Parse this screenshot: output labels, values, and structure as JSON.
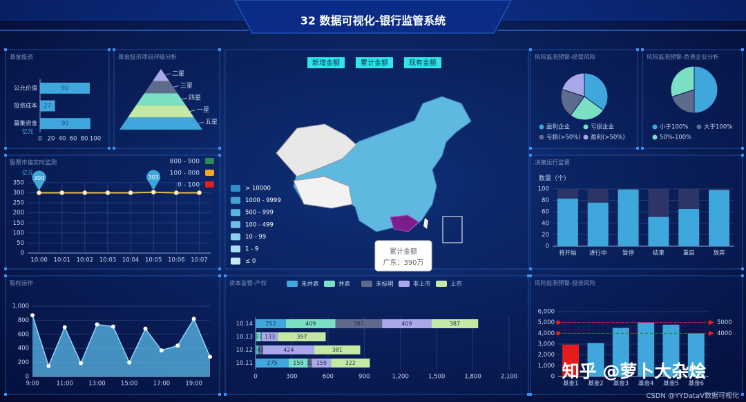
{
  "header": {
    "title": "32 数据可视化-银行监管系统"
  },
  "chart_data": [
    {
      "type": "hbar",
      "title": "基金投资",
      "categories": [
        "公允价值",
        "投资成本",
        "募集资金"
      ],
      "values": [
        90,
        27,
        91
      ],
      "color": "#3fa7dc",
      "unit": "亿元",
      "xlim": [
        0,
        100
      ],
      "xticks": [
        0,
        20,
        40,
        60,
        80,
        100
      ]
    },
    {
      "type": "funnel",
      "title": "基金投资项目评级分析",
      "categories": [
        "二星",
        "三星",
        "四星",
        "一星",
        "五星"
      ],
      "values": [
        20,
        40,
        60,
        80,
        100
      ],
      "colors": [
        "#a9a8e8",
        "#5f6b8c",
        "#7be0c3",
        "#c5e9a5",
        "#3fa7dc"
      ]
    },
    {
      "type": "line",
      "title": "股票市值实时监测",
      "unit": "亿元",
      "categories": [
        "10:00",
        "10:01",
        "10:02",
        "10:03",
        "10:04",
        "10:05",
        "10:06",
        "10:07"
      ],
      "values": [
        300,
        300,
        300,
        300,
        300,
        303,
        300,
        300
      ],
      "color": "#e8b84a",
      "pin_color": "#3fa7dc",
      "ylim": [
        0,
        350
      ],
      "yticks": [
        0,
        50,
        100,
        150,
        200,
        250,
        300,
        350
      ],
      "grid": true,
      "visual_map": [
        {
          "label": "800 - 900",
          "color": "#2e8b57"
        },
        {
          "label": "100 - 800",
          "color": "#f5a623"
        },
        {
          "label": "0 - 100",
          "color": "#e02020"
        }
      ]
    },
    {
      "type": "pie",
      "title": "风险监测预警-经营风险",
      "categories": [
        "盈利企业",
        "亏损企业",
        "亏损(>50%)",
        "盈利(>50%)"
      ],
      "values": [
        35,
        25,
        20,
        20
      ],
      "colors": [
        "#3fa7dc",
        "#7be0c3",
        "#5f6b8c",
        "#a9a8e8"
      ]
    },
    {
      "type": "pie",
      "title": "风险监测预警-负债企业分析",
      "categories": [
        "小于100%",
        "大于100%",
        "50%-100%"
      ],
      "values": [
        50,
        20,
        30
      ],
      "colors": [
        "#3fa7dc",
        "#5f6b8c",
        "#7be0c3"
      ]
    },
    {
      "type": "trackbar",
      "title": "决策运行监督",
      "ylabel": "数量（个）",
      "categories": [
        "将开始",
        "进行中",
        "暂停",
        "结束",
        "重启",
        "放弃"
      ],
      "values": [
        83,
        76,
        99,
        51,
        65,
        98
      ],
      "color": "#3fa7dc",
      "track_color": "#2c3566",
      "ylim": [
        0,
        100
      ],
      "yticks": [
        0,
        20,
        40,
        60,
        80,
        100
      ],
      "grid": true
    },
    {
      "type": "area",
      "title": "股权运作",
      "categories": [
        "9:00",
        null,
        "11:00",
        null,
        "13:00",
        null,
        "15:00",
        null,
        "17:00",
        null,
        "19:00",
        null
      ],
      "values": [
        870,
        150,
        700,
        190,
        740,
        710,
        200,
        680,
        370,
        440,
        820,
        280
      ],
      "color": "#5ab8e8",
      "ylim": [
        0,
        1000
      ],
      "yticks": [
        0,
        200,
        400,
        600,
        800,
        {
          "value": 1000,
          "label": "1,000"
        }
      ],
      "grid": true
    },
    {
      "type": "stacked_hbar",
      "title": "资本监管-产权",
      "categories": [
        "10.11",
        "10.12",
        "10.13",
        "10.14"
      ],
      "series": [
        {
          "name": "未并表",
          "color": "#3fa7dc",
          "values": [
            275,
            13,
            8,
            252
          ]
        },
        {
          "name": "并表",
          "color": "#7be0c3",
          "values": [
            159,
            8,
            37,
            409
          ]
        },
        {
          "name": "未标明",
          "color": "#5f6b8c",
          "values": [
            32,
            41,
            6,
            387
          ]
        },
        {
          "name": "非上市",
          "color": "#a9a8e8",
          "values": [
            159,
            424,
            133,
            409
          ]
        },
        {
          "name": "上市",
          "color": "#c5e9a5",
          "values": [
            322,
            381,
            397,
            387
          ]
        }
      ],
      "xlim": [
        0,
        2100
      ],
      "xticks": [
        0,
        300,
        600,
        900,
        {
          "value": 1200,
          "label": "1,200"
        },
        {
          "value": 1500,
          "label": "1,500"
        },
        {
          "value": 1800,
          "label": "1,800"
        },
        {
          "value": 2100,
          "label": "2,100"
        }
      ],
      "grid": true
    },
    {
      "type": "bar",
      "title": "风险监测预警-投资风险",
      "categories": [
        "基金1",
        "基金2",
        "基金3",
        "基金4",
        "基金5",
        "基金6"
      ],
      "values": [
        2950,
        3100,
        4500,
        5000,
        4800,
        4000
      ],
      "colors": [
        "#e61c1c",
        "#3fa7dc",
        "#3fa7dc",
        "#3fa7dc",
        "#3fa7dc",
        "#3fa7dc"
      ],
      "ylim": [
        0,
        6000
      ],
      "yticks": [
        0,
        {
          "value": 1000,
          "label": "1,000"
        },
        {
          "value": 2000,
          "label": "2,000"
        },
        {
          "value": 3000,
          "label": "3,000"
        },
        {
          "value": 4000,
          "label": "4,000"
        },
        {
          "value": 5000,
          "label": "5,000"
        },
        {
          "value": 6000,
          "label": "6,000"
        }
      ],
      "grid": true,
      "mark_lines": [
        5000,
        4000
      ],
      "mark_line_color": "#e61c1c"
    }
  ],
  "map": {
    "buttons": [
      "新增金额",
      "累计金额",
      "现有金额"
    ],
    "legend": [
      "> 10000",
      "1000 - 9999",
      "500 - 999",
      "100 - 499",
      "10 - 99",
      "1 - 9",
      "≤ 0"
    ],
    "legend_colors": [
      "#2e8fc8",
      "#45a3d6",
      "#5ab3e0",
      "#6fc0e6",
      "#8ccfec",
      "#a8dcf2",
      "#c6e9f7"
    ],
    "tooltip": {
      "title": "累计金额",
      "text": "广东：390万"
    }
  },
  "watermark": {
    "main": "知乎 @萝卜大杂烩",
    "footer": "CSDN @YYDataV数据可视化"
  }
}
